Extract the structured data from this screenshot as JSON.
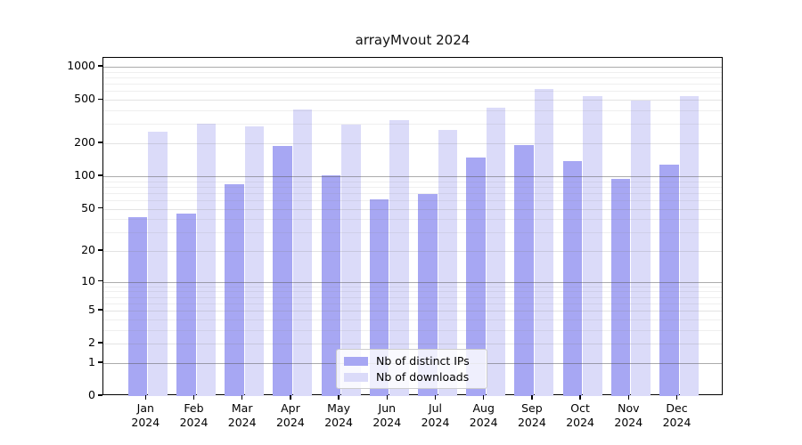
{
  "title": "arrayMvout 2024",
  "chart_data": {
    "type": "bar",
    "title": "arrayMvout 2024",
    "categories": [
      "Jan",
      "Feb",
      "Mar",
      "Apr",
      "May",
      "Jun",
      "Jul",
      "Aug",
      "Sep",
      "Oct",
      "Nov",
      "Dec"
    ],
    "x_year_label": "2024",
    "series": [
      {
        "name": "Nb of distinct IPs",
        "color": "#a7a7f3",
        "values": [
          42,
          45,
          85,
          190,
          101,
          61,
          68,
          148,
          194,
          137,
          94,
          127
        ]
      },
      {
        "name": "Nb of downloads",
        "color": "#dbdbf9",
        "values": [
          258,
          300,
          286,
          405,
          295,
          328,
          268,
          424,
          627,
          543,
          489,
          540
        ]
      }
    ],
    "yscale": "log10(1+y)",
    "y_ticks": [
      0,
      1,
      2,
      5,
      10,
      20,
      50,
      100,
      200,
      500,
      1000
    ],
    "y_tick_labels": [
      "0",
      "1",
      "2",
      "5",
      "10",
      "20",
      "50",
      "100",
      "200",
      "500",
      "1000"
    ],
    "ylim": [
      0,
      1200
    ],
    "grid": true,
    "legend_position": "lower center"
  }
}
